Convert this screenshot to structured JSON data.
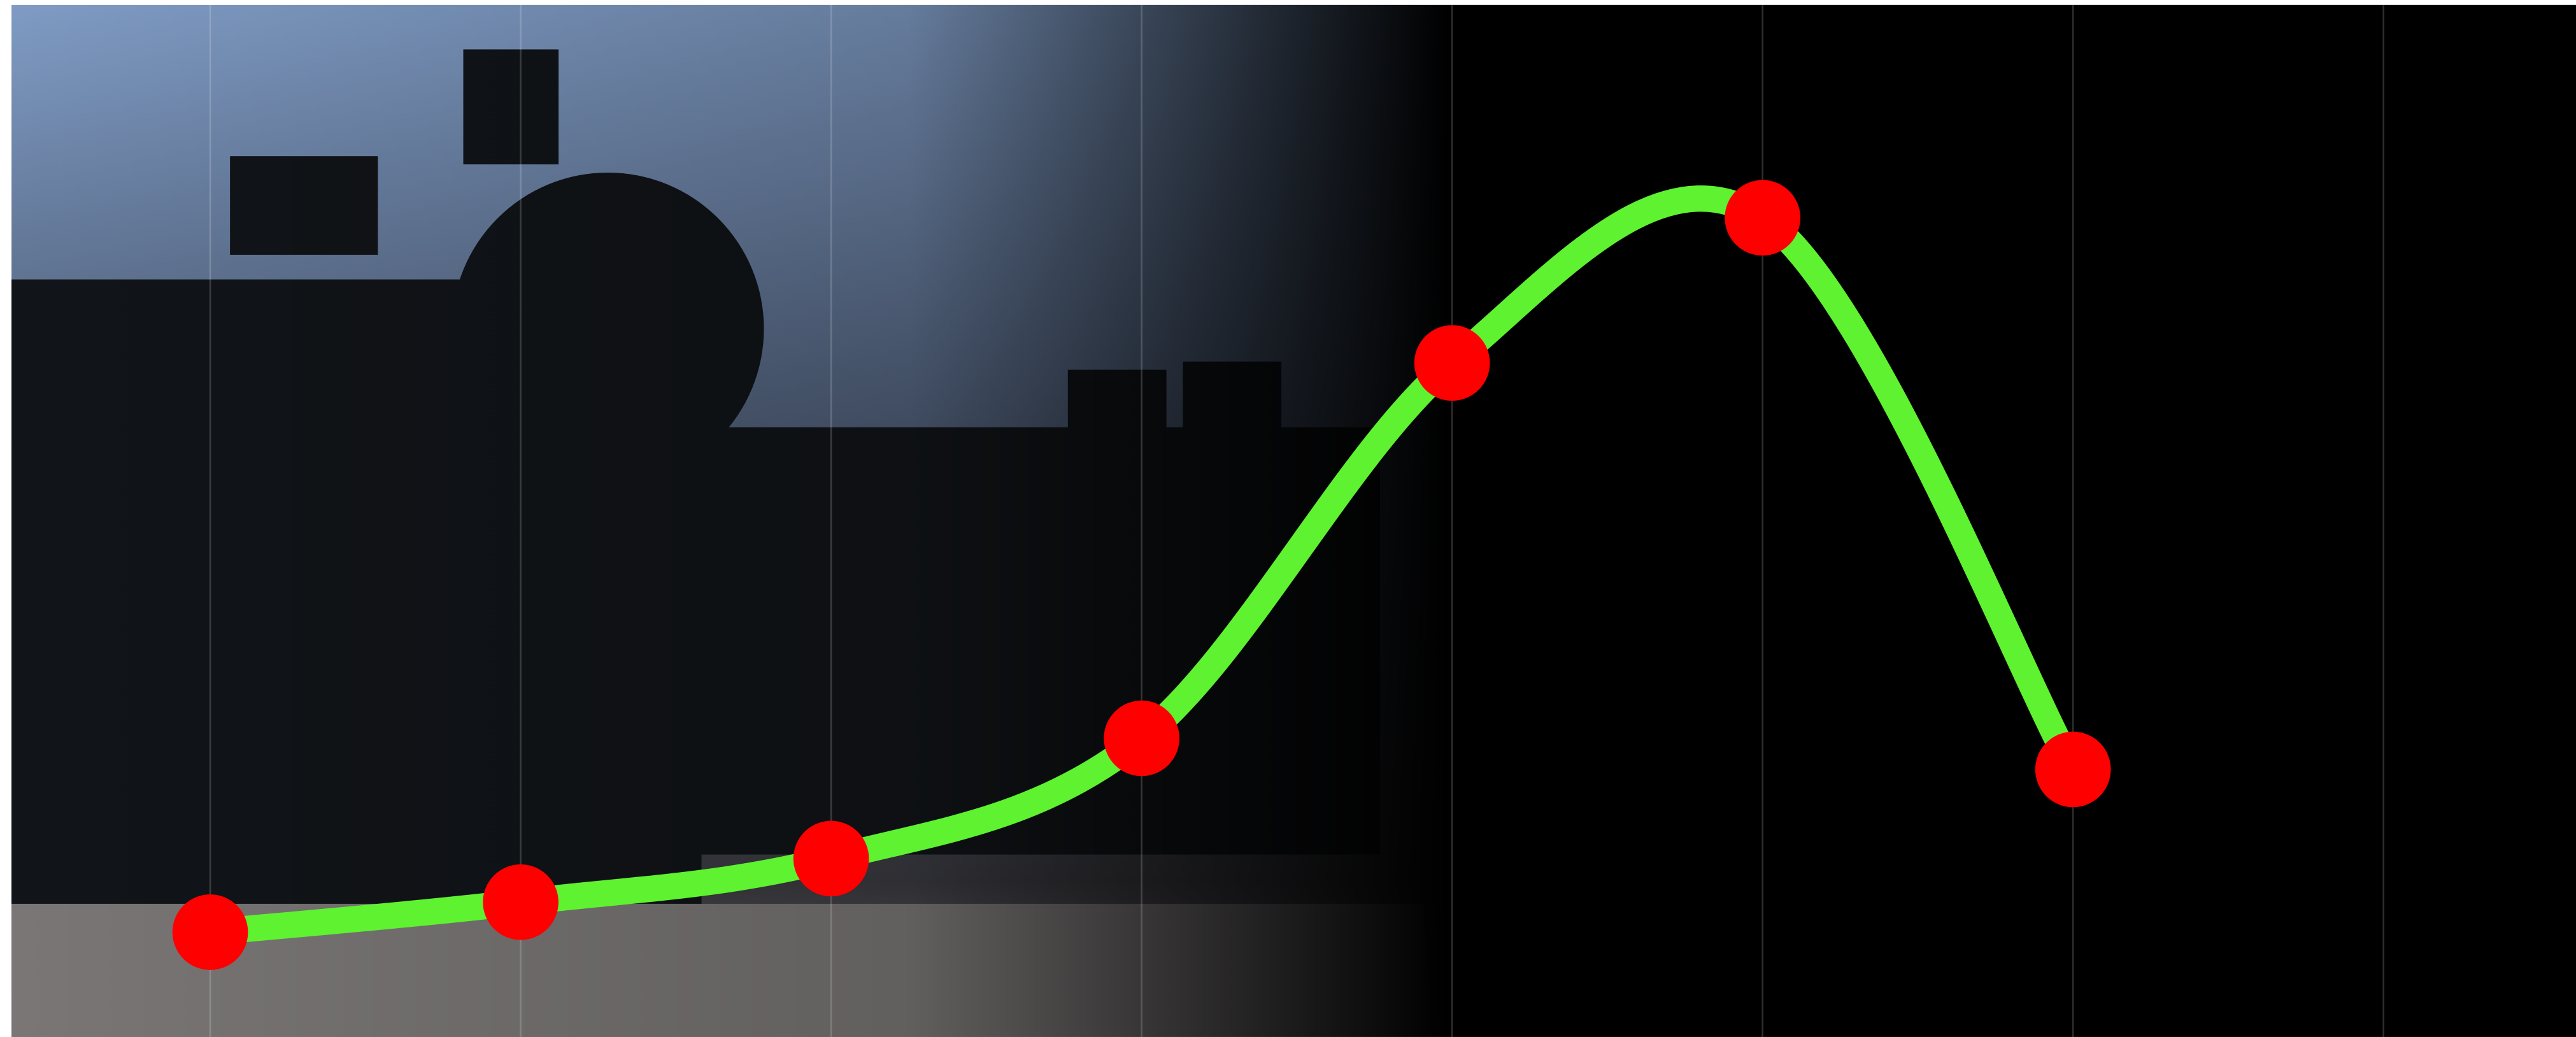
{
  "chart_data": {
    "type": "line",
    "x": [
      0,
      1,
      2,
      3,
      4,
      5,
      6
    ],
    "series": [
      {
        "color": "#5ef230",
        "marker_color": "#ff0000",
        "values": [
          10.1,
          13,
          17.2,
          28.8,
          65,
          79,
          25.8
        ]
      }
    ],
    "xlim": [
      -0.64,
      7.62
    ],
    "xticks": [
      0,
      1,
      2,
      3,
      4,
      5,
      6,
      7
    ],
    "ylim": [
      0,
      100
    ],
    "grid": true
  }
}
